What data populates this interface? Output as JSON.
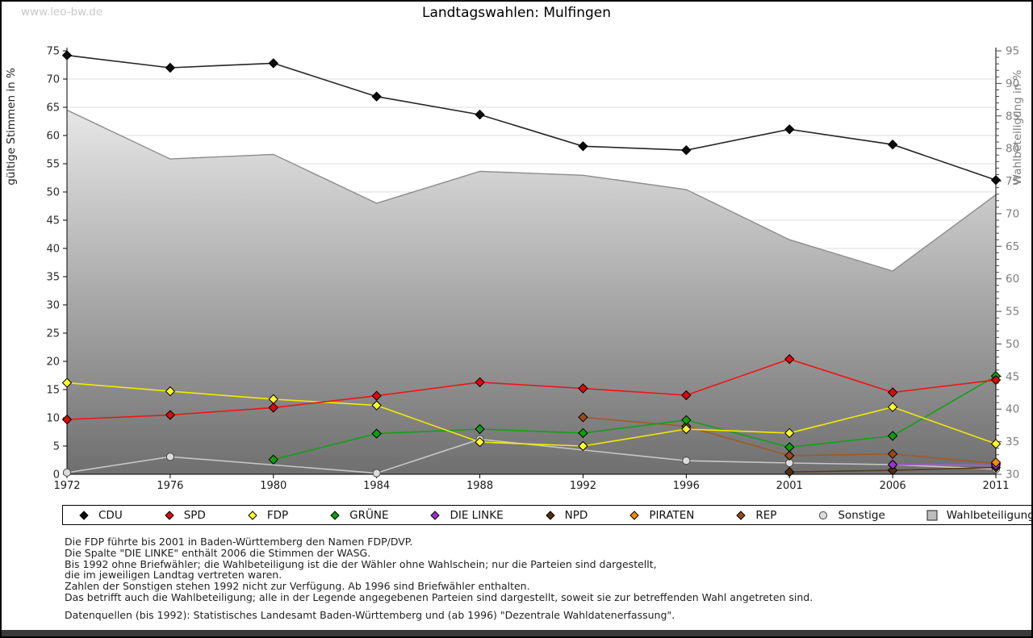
{
  "page": {
    "watermark": "www.leo-bw.de",
    "title": "Landtagswahlen: Mulfingen"
  },
  "chart_data": {
    "type": "line",
    "title": "Landtagswahlen: Mulfingen",
    "x_categories": [
      "1972",
      "1976",
      "1980",
      "1984",
      "1988",
      "1992",
      "1996",
      "2001",
      "2006",
      "2011"
    ],
    "left_axis": {
      "label": "gültige Stimmen in %",
      "min": 0,
      "max": 75,
      "tick_step": 5
    },
    "right_axis": {
      "label": "Wahlbeteiligung in %",
      "min": 30,
      "max": 95,
      "tick_step": 5,
      "minor_step": 1
    },
    "grid": true,
    "legend_position": "bottom",
    "series": [
      {
        "name": "CDU",
        "axis": "left",
        "marker": "diamond",
        "marker_color": "#0d0d0d",
        "line_color": "#262626",
        "values": [
          74.2,
          72.0,
          72.8,
          66.9,
          63.7,
          58.1,
          57.4,
          61.1,
          58.4,
          52.1
        ]
      },
      {
        "name": "SPD",
        "axis": "left",
        "marker": "diamond",
        "marker_color": "#dd0a0a",
        "line_color": "#f01414",
        "values": [
          9.7,
          10.5,
          11.8,
          13.9,
          16.3,
          15.2,
          14.0,
          20.4,
          14.5,
          16.7
        ]
      },
      {
        "name": "FDP",
        "axis": "left",
        "marker": "diamond",
        "marker_color": "#ffff29",
        "line_color": "#f0eb00",
        "values": [
          16.2,
          14.7,
          13.3,
          12.2,
          5.7,
          5.0,
          8.0,
          7.3,
          11.9,
          5.4
        ]
      },
      {
        "name": "GRÜNE",
        "axis": "left",
        "marker": "diamond",
        "marker_color": "#0da00d",
        "line_color": "#14a014",
        "values": [
          null,
          null,
          2.6,
          7.2,
          8.0,
          7.3,
          9.6,
          4.8,
          6.8,
          17.4
        ]
      },
      {
        "name": "DIE LINKE",
        "axis": "left",
        "marker": "diamond",
        "marker_color": "#9933cc",
        "line_color": "#a65ed6",
        "values": [
          null,
          null,
          null,
          null,
          null,
          null,
          null,
          null,
          1.7,
          1.6
        ]
      },
      {
        "name": "NPD",
        "axis": "left",
        "marker": "diamond",
        "marker_color": "#4f2f12",
        "line_color": "#5a3a1a",
        "values": [
          null,
          null,
          null,
          null,
          null,
          null,
          null,
          0.4,
          0.7,
          1.2
        ]
      },
      {
        "name": "PIRATEN",
        "axis": "left",
        "marker": "diamond",
        "marker_color": "#ff8c00",
        "line_color": "#ff9922",
        "values": [
          null,
          null,
          null,
          null,
          null,
          null,
          null,
          null,
          null,
          2.1
        ]
      },
      {
        "name": "REP",
        "axis": "left",
        "marker": "diamond",
        "marker_color": "#98491c",
        "line_color": "#a05a28",
        "values": [
          null,
          null,
          null,
          null,
          null,
          10.1,
          8.5,
          3.3,
          3.6,
          1.9
        ]
      },
      {
        "name": "Sonstige",
        "axis": "left",
        "marker": "circle",
        "marker_color": "#dcdcdc",
        "line_color": "#c6c6c6",
        "values": [
          0.3,
          3.1,
          null,
          0.2,
          6.2,
          null,
          2.4,
          2.0,
          1.7,
          0.9
        ]
      }
    ],
    "area_series": {
      "name": "Wahlbeteiligung",
      "axis": "right",
      "marker": "square",
      "edge_color": "#8c8c8c",
      "values": [
        85.9,
        78.4,
        79.1,
        71.6,
        76.5,
        75.9,
        73.7,
        66.0,
        61.2,
        72.9
      ]
    }
  },
  "colors": {
    "grid": "#dedede",
    "axis": "#000000",
    "left_tick_label": "#2b2b2b",
    "right_tick_label": "#7d7d7d",
    "area_top": "#fbfbfb",
    "area_bottom": "#6f6f6f",
    "footer_bar": "#3a3a3a",
    "watermark": "#c9c9c9"
  },
  "notes": [
    "Die FDP führte bis 2001 in Baden-Württemberg den Namen FDP/DVP.",
    "Die Spalte \"DIE LINKE\" enthält 2006 die Stimmen der WASG.",
    "Bis 1992 ohne Briefwähler; die Wahlbeteiligung ist die der Wähler ohne Wahlschein; nur die Parteien sind dargestellt,",
    "die im jeweiligen Landtag vertreten waren.",
    "Zahlen der Sonstigen stehen 1992 nicht zur Verfügung. Ab 1996 sind Briefwähler enthalten.",
    "Das betrifft auch die Wahlbeteiligung; alle in der Legende angegebenen Parteien sind dargestellt, soweit sie zur betreffenden Wahl angetreten sind.",
    "",
    "Datenquellen (bis 1992): Statistisches Landesamt Baden-Württemberg und (ab 1996) \"Dezentrale Wahldatenerfassung\"."
  ]
}
